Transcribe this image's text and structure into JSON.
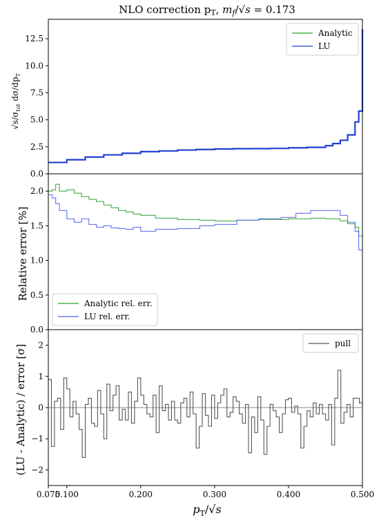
{
  "chart_data": [
    {
      "type": "line",
      "title": "NLO correction p_T, m_f/√s = 0.173",
      "ylabel": "√s/σ_tot dσ/dp_T",
      "xlim": [
        0.075,
        0.5
      ],
      "ylim": [
        0,
        14.3
      ],
      "yticks": [
        "0.0",
        "2.5",
        "5.0",
        "7.5",
        "10.0",
        "12.5"
      ],
      "legend": "top-right",
      "series": [
        {
          "name": "Analytic",
          "color": "#2ca02c"
        },
        {
          "name": "LU",
          "color": "#1f3fd0"
        }
      ],
      "x": [
        0.075,
        0.1,
        0.125,
        0.15,
        0.175,
        0.2,
        0.225,
        0.25,
        0.275,
        0.3,
        0.325,
        0.35,
        0.375,
        0.4,
        0.425,
        0.45,
        0.46,
        0.47,
        0.48,
        0.49,
        0.495,
        0.5
      ],
      "values": [
        1.05,
        1.3,
        1.55,
        1.75,
        1.9,
        2.05,
        2.12,
        2.2,
        2.25,
        2.3,
        2.32,
        2.33,
        2.35,
        2.4,
        2.45,
        2.6,
        2.8,
        3.1,
        3.6,
        4.8,
        5.8,
        13.4
      ]
    },
    {
      "type": "line",
      "ylabel": "Relative error [%]",
      "xlim": [
        0.075,
        0.5
      ],
      "ylim": [
        0,
        2.25
      ],
      "yticks": [
        "0.0",
        "0.5",
        "1.0",
        "1.5",
        "2.0"
      ],
      "legend": "bottom-left",
      "series": [
        {
          "name": "Analytic rel. err.",
          "color": "#2ca02c",
          "x": [
            0.075,
            0.08,
            0.085,
            0.09,
            0.1,
            0.11,
            0.12,
            0.13,
            0.14,
            0.15,
            0.16,
            0.17,
            0.18,
            0.19,
            0.2,
            0.22,
            0.25,
            0.28,
            0.3,
            0.33,
            0.36,
            0.4,
            0.43,
            0.45,
            0.47,
            0.48,
            0.49,
            0.495,
            0.5
          ],
          "values": [
            2.0,
            2.02,
            2.1,
            2.0,
            2.02,
            1.97,
            1.92,
            1.88,
            1.85,
            1.8,
            1.76,
            1.72,
            1.7,
            1.67,
            1.65,
            1.61,
            1.59,
            1.58,
            1.57,
            1.58,
            1.59,
            1.6,
            1.61,
            1.6,
            1.57,
            1.53,
            1.48,
            1.35,
            1.0
          ]
        },
        {
          "name": "LU rel. err.",
          "color": "#5060f0",
          "x": [
            0.075,
            0.08,
            0.085,
            0.09,
            0.1,
            0.11,
            0.12,
            0.13,
            0.14,
            0.15,
            0.16,
            0.17,
            0.18,
            0.19,
            0.2,
            0.22,
            0.25,
            0.28,
            0.3,
            0.33,
            0.36,
            0.39,
            0.41,
            0.43,
            0.45,
            0.47,
            0.48,
            0.49,
            0.495,
            0.5
          ],
          "values": [
            1.95,
            1.9,
            1.82,
            1.72,
            1.6,
            1.55,
            1.6,
            1.52,
            1.48,
            1.5,
            1.47,
            1.46,
            1.45,
            1.48,
            1.42,
            1.45,
            1.46,
            1.5,
            1.52,
            1.58,
            1.6,
            1.62,
            1.68,
            1.72,
            1.72,
            1.65,
            1.55,
            1.42,
            1.15,
            0.87
          ]
        }
      ]
    },
    {
      "type": "line",
      "ylabel": "(LU - Analytic) / error [σ]",
      "xlabel": "p_T/√s",
      "xlim": [
        0.075,
        0.5
      ],
      "ylim": [
        -2.5,
        2.5
      ],
      "yticks": [
        "−2",
        "−1",
        "0",
        "1",
        "2"
      ],
      "xticks": [
        "0.075",
        "0.100",
        "0.200",
        "0.300",
        "0.400",
        "0.500"
      ],
      "legend": "top-right",
      "series": [
        {
          "name": "pull",
          "color": "#555555",
          "values": [
            0.9,
            -1.25,
            0.2,
            0.3,
            -0.7,
            0.95,
            0.6,
            -0.3,
            0.2,
            -0.2,
            -0.7,
            -1.6,
            0.1,
            0.3,
            -0.5,
            -0.6,
            0.55,
            -0.2,
            -1.0,
            0.75,
            -0.1,
            0.4,
            0.7,
            -0.4,
            -0.05,
            -0.4,
            0.5,
            -0.5,
            0.2,
            0.95,
            0.4,
            0.1,
            -0.2,
            -0.3,
            0.4,
            -0.8,
            0.7,
            -0.1,
            0.1,
            -0.4,
            0.2,
            -0.4,
            -0.5,
            0.15,
            0.3,
            -0.3,
            0.5,
            -0.2,
            -1.3,
            -0.6,
            0.45,
            -0.25,
            -0.6,
            0.4,
            -0.35,
            0.15,
            0.4,
            0.6,
            -0.3,
            -0.15,
            0.35,
            0.2,
            -0.2,
            -0.5,
            0.1,
            -1.45,
            -0.3,
            -0.8,
            0.35,
            -0.4,
            -1.5,
            -0.6,
            0.1,
            -0.1,
            -0.3,
            -0.8,
            -0.2,
            0.25,
            0.3,
            -0.15,
            0.05,
            -0.2,
            -1.3,
            -0.6,
            -0.1,
            -0.3,
            0.15,
            -0.2,
            0.1,
            -0.2,
            -0.4,
            0.1,
            -1.2,
            0.3,
            1.2,
            -0.5,
            -0.15,
            0.1,
            -0.3,
            0.3,
            0.3,
            0.15
          ]
        }
      ]
    }
  ]
}
